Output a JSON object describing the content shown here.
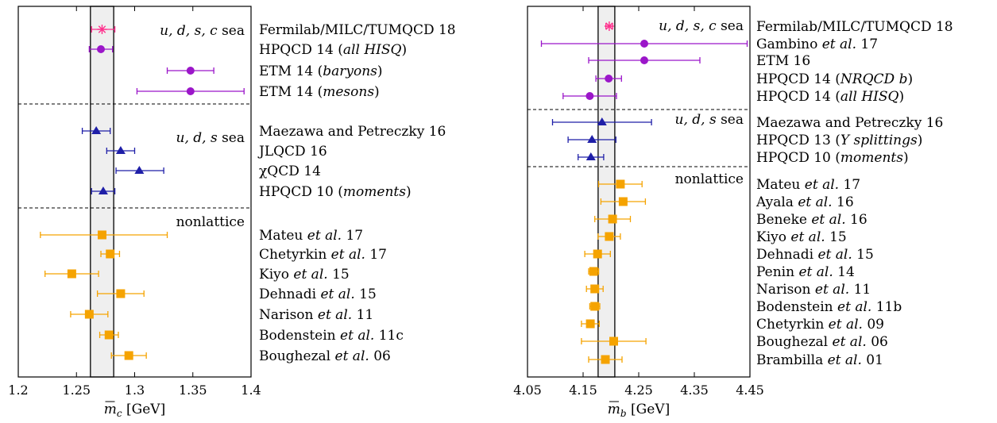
{
  "colors": {
    "four_flavor": "#9b16c9",
    "three_flavor": "#1f1fa8",
    "nonlattice": "#f5a300",
    "fnal": "#ff2f8c",
    "band": "#efefef"
  },
  "chart_data": [
    {
      "type": "scatter",
      "xlabel_sym": "m",
      "xlabel_sub": "c",
      "xlabel_unit": " [GeV]",
      "xlim": [
        1.2,
        1.4
      ],
      "ticks": [
        1.2,
        1.25,
        1.3,
        1.35,
        1.4
      ],
      "tick_labels": [
        "1.2",
        "1.25",
        "1.3",
        "1.35",
        "1.4"
      ],
      "band": [
        1.262,
        1.282
      ],
      "sections": [
        {
          "label": "u, d, s, c sea",
          "points": [
            {
              "name": "Fermilab/MILC/TUMQCD 18",
              "value": 1.272,
              "lo": 1.263,
              "hi": 1.283,
              "marker": "star",
              "color": "fnal"
            },
            {
              "name": "HPQCD 14 (all HISQ)",
              "value": 1.271,
              "lo": 1.261,
              "hi": 1.281,
              "marker": "circle",
              "color": "four_flavor"
            },
            {
              "name": "ETM 14 (baryons)",
              "value": 1.348,
              "lo": 1.328,
              "hi": 1.368,
              "marker": "circle",
              "color": "four_flavor"
            },
            {
              "name": "ETM 14 (mesons)",
              "value": 1.348,
              "lo": 1.302,
              "hi": 1.394,
              "marker": "circle",
              "color": "four_flavor"
            }
          ]
        },
        {
          "label": "u, d, s sea",
          "points": [
            {
              "name": "Maezawa and Petreczky 16",
              "value": 1.267,
              "lo": 1.255,
              "hi": 1.279,
              "marker": "triangle",
              "color": "three_flavor"
            },
            {
              "name": "JLQCD 16",
              "value": 1.288,
              "lo": 1.276,
              "hi": 1.3,
              "marker": "triangle",
              "color": "three_flavor"
            },
            {
              "name": "χQCD 14",
              "value": 1.304,
              "lo": 1.284,
              "hi": 1.325,
              "marker": "triangle",
              "color": "three_flavor"
            },
            {
              "name": "HPQCD 10 (moments)",
              "value": 1.273,
              "lo": 1.263,
              "hi": 1.283,
              "marker": "triangle",
              "color": "three_flavor"
            }
          ]
        },
        {
          "label": "nonlattice",
          "points": [
            {
              "name": "Mateu et al. 17",
              "value": 1.272,
              "lo": 1.219,
              "hi": 1.328,
              "marker": "square",
              "color": "nonlattice"
            },
            {
              "name": "Chetyrkin et al. 17",
              "value": 1.279,
              "lo": 1.271,
              "hi": 1.287,
              "marker": "square",
              "color": "nonlattice"
            },
            {
              "name": "Kiyo et al. 15",
              "value": 1.246,
              "lo": 1.223,
              "hi": 1.269,
              "marker": "square",
              "color": "nonlattice"
            },
            {
              "name": "Dehnadi et al. 15",
              "value": 1.288,
              "lo": 1.268,
              "hi": 1.308,
              "marker": "square",
              "color": "nonlattice"
            },
            {
              "name": "Narison et al. 11",
              "value": 1.261,
              "lo": 1.245,
              "hi": 1.277,
              "marker": "square",
              "color": "nonlattice"
            },
            {
              "name": "Bodenstein et al. 11c",
              "value": 1.278,
              "lo": 1.27,
              "hi": 1.286,
              "marker": "square",
              "color": "nonlattice"
            },
            {
              "name": "Boughezal et al. 06",
              "value": 1.295,
              "lo": 1.28,
              "hi": 1.31,
              "marker": "square",
              "color": "nonlattice"
            }
          ]
        }
      ]
    },
    {
      "type": "scatter",
      "xlabel_sym": "m",
      "xlabel_sub": "b",
      "xlabel_unit": " [GeV]",
      "xlim": [
        4.05,
        4.45
      ],
      "ticks": [
        4.05,
        4.15,
        4.25,
        4.35,
        4.45
      ],
      "tick_labels": [
        "4.05",
        "4.15",
        "4.25",
        "4.35",
        "4.45"
      ],
      "band": [
        4.177,
        4.207
      ],
      "sections": [
        {
          "label": "u, d, s, c sea",
          "points": [
            {
              "name": "Fermilab/MILC/TUMQCD 18",
              "value": 4.197,
              "lo": 4.191,
              "hi": 4.203,
              "marker": "star",
              "color": "fnal"
            },
            {
              "name": "Gambino et al. 17",
              "value": 4.26,
              "lo": 4.075,
              "hi": 4.445,
              "marker": "circle",
              "color": "four_flavor"
            },
            {
              "name": "ETM 16",
              "value": 4.26,
              "lo": 4.16,
              "hi": 4.36,
              "marker": "circle",
              "color": "four_flavor"
            },
            {
              "name": "HPQCD 14 (NRQCD b)",
              "value": 4.196,
              "lo": 4.173,
              "hi": 4.219,
              "marker": "circle",
              "color": "four_flavor"
            },
            {
              "name": "HPQCD 14 (all HISQ)",
              "value": 4.162,
              "lo": 4.114,
              "hi": 4.21,
              "marker": "circle",
              "color": "four_flavor"
            }
          ]
        },
        {
          "label": "u, d, s sea",
          "points": [
            {
              "name": "Maezawa and Petreczky 16",
              "value": 4.184,
              "lo": 4.095,
              "hi": 4.273,
              "marker": "triangle",
              "color": "three_flavor"
            },
            {
              "name": "HPQCD 13 (Υ splittings)",
              "value": 4.166,
              "lo": 4.123,
              "hi": 4.209,
              "marker": "triangle",
              "color": "three_flavor"
            },
            {
              "name": "HPQCD 10 (moments)",
              "value": 4.164,
              "lo": 4.141,
              "hi": 4.187,
              "marker": "triangle",
              "color": "three_flavor"
            }
          ]
        },
        {
          "label": "nonlattice",
          "points": [
            {
              "name": "Mateu et al. 17",
              "value": 4.217,
              "lo": 4.178,
              "hi": 4.256,
              "marker": "square",
              "color": "nonlattice"
            },
            {
              "name": "Ayala et al. 16",
              "value": 4.222,
              "lo": 4.182,
              "hi": 4.262,
              "marker": "square",
              "color": "nonlattice"
            },
            {
              "name": "Beneke et al. 16",
              "value": 4.203,
              "lo": 4.171,
              "hi": 4.235,
              "marker": "square",
              "color": "nonlattice"
            },
            {
              "name": "Kiyo et al. 15",
              "value": 4.197,
              "lo": 4.177,
              "hi": 4.217,
              "marker": "square",
              "color": "nonlattice"
            },
            {
              "name": "Dehnadi et al. 15",
              "value": 4.176,
              "lo": 4.153,
              "hi": 4.199,
              "marker": "square",
              "color": "nonlattice"
            },
            {
              "name": "Penin et al. 14",
              "value": 4.169,
              "lo": 4.16,
              "hi": 4.178,
              "marker": "square",
              "color": "nonlattice"
            },
            {
              "name": "Narison et al. 11",
              "value": 4.171,
              "lo": 4.156,
              "hi": 4.186,
              "marker": "square",
              "color": "nonlattice"
            },
            {
              "name": "Bodenstein et al. 11b",
              "value": 4.171,
              "lo": 4.162,
              "hi": 4.18,
              "marker": "square",
              "color": "nonlattice"
            },
            {
              "name": "Chetyrkin et al. 09",
              "value": 4.163,
              "lo": 4.147,
              "hi": 4.179,
              "marker": "square",
              "color": "nonlattice"
            },
            {
              "name": "Boughezal et al. 06",
              "value": 4.205,
              "lo": 4.147,
              "hi": 4.263,
              "marker": "square",
              "color": "nonlattice"
            },
            {
              "name": "Brambilla et al. 01",
              "value": 4.19,
              "lo": 4.16,
              "hi": 4.22,
              "marker": "square",
              "color": "nonlattice"
            }
          ]
        }
      ]
    }
  ]
}
